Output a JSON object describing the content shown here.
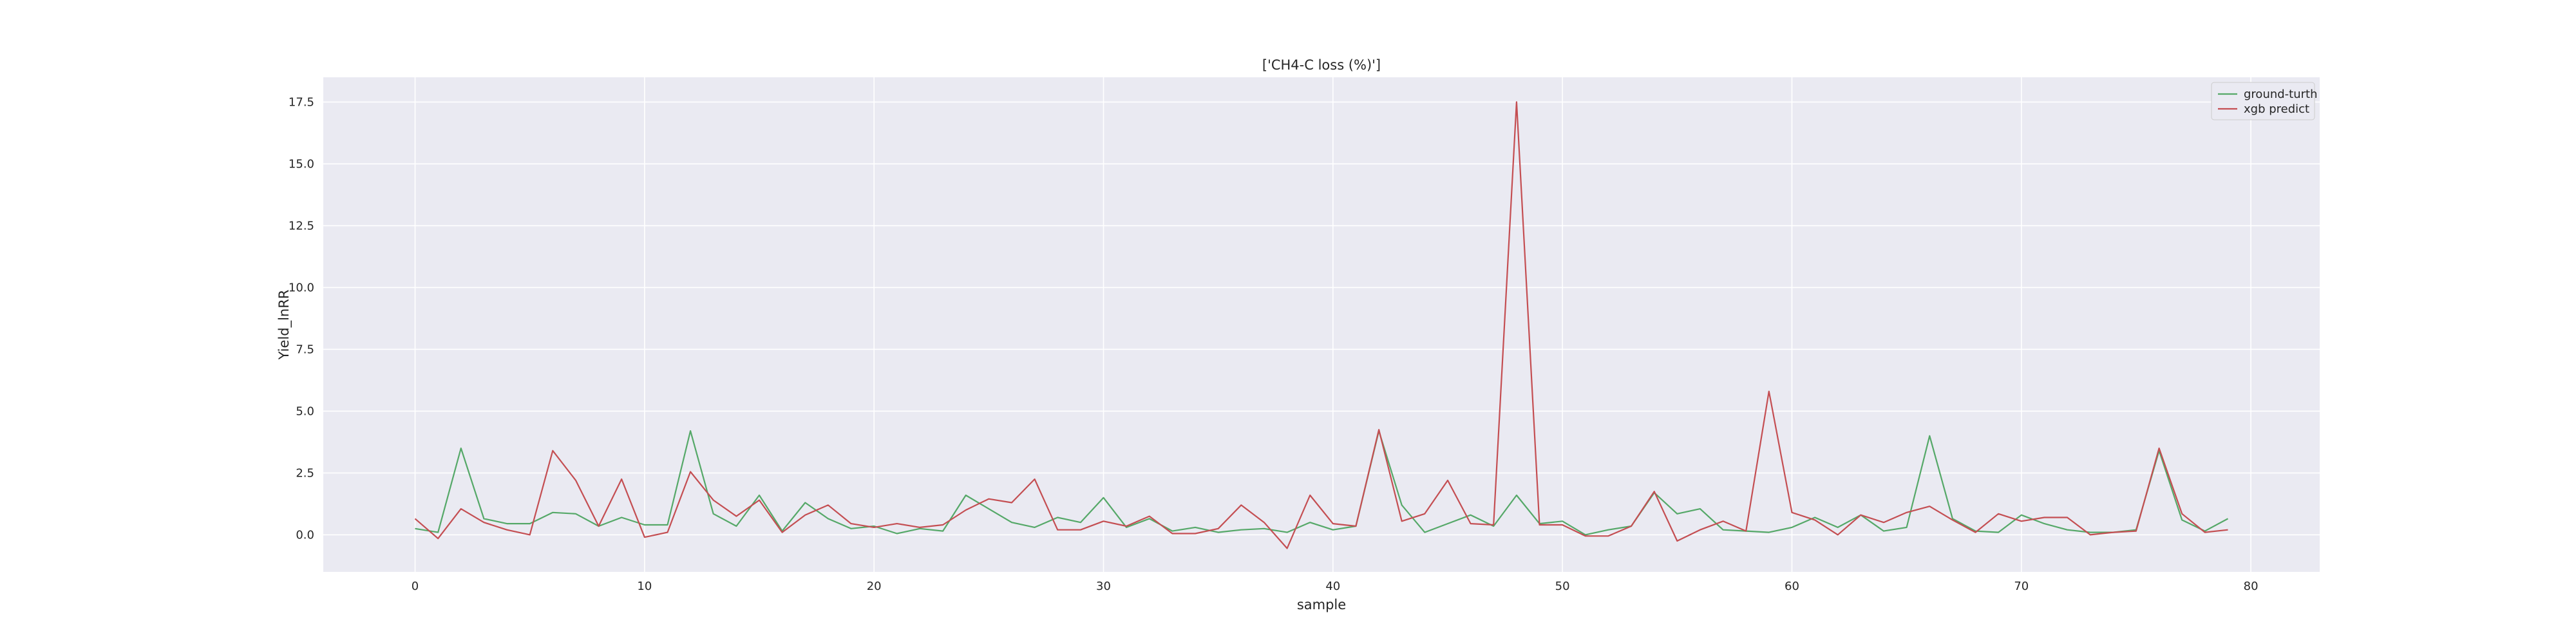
{
  "chart_data": {
    "type": "line",
    "title": "['CH4-C loss (%)']",
    "xlabel": "sample",
    "ylabel": "Yield_lnRR",
    "xlim": [
      -4,
      83
    ],
    "ylim": [
      -1.5,
      18.5
    ],
    "xticks": [
      0,
      10,
      20,
      30,
      40,
      50,
      60,
      70,
      80
    ],
    "xtick_labels": [
      "0",
      "10",
      "20",
      "30",
      "40",
      "50",
      "60",
      "70",
      "80"
    ],
    "yticks": [
      0.0,
      2.5,
      5.0,
      7.5,
      10.0,
      12.5,
      15.0,
      17.5
    ],
    "ytick_labels": [
      "0.0",
      "2.5",
      "5.0",
      "7.5",
      "10.0",
      "12.5",
      "15.0",
      "17.5"
    ],
    "grid": true,
    "background": "#eaeaf2",
    "legend_position": "top-right",
    "x": [
      0,
      1,
      2,
      3,
      4,
      5,
      6,
      7,
      8,
      9,
      10,
      11,
      12,
      13,
      14,
      15,
      16,
      17,
      18,
      19,
      20,
      21,
      22,
      23,
      24,
      25,
      26,
      27,
      28,
      29,
      30,
      31,
      32,
      33,
      34,
      35,
      36,
      37,
      38,
      39,
      40,
      41,
      42,
      43,
      44,
      45,
      46,
      47,
      48,
      49,
      50,
      51,
      52,
      53,
      54,
      55,
      56,
      57,
      58,
      59,
      60,
      61,
      62,
      63,
      64,
      65,
      66,
      67,
      68,
      69,
      70,
      71,
      72,
      73,
      74,
      75,
      76,
      77,
      78,
      79
    ],
    "series": [
      {
        "name": "ground-turth",
        "color": "#55a868",
        "values": [
          0.25,
          0.1,
          3.5,
          0.65,
          0.45,
          0.45,
          0.9,
          0.85,
          0.35,
          0.7,
          0.4,
          0.4,
          4.2,
          0.85,
          0.35,
          1.6,
          0.15,
          1.3,
          0.65,
          0.25,
          0.35,
          0.05,
          0.25,
          0.15,
          1.6,
          1.05,
          0.5,
          0.3,
          0.7,
          0.5,
          1.5,
          0.3,
          0.65,
          0.15,
          0.3,
          0.1,
          0.2,
          0.25,
          0.1,
          0.5,
          0.2,
          0.35,
          4.2,
          1.2,
          0.1,
          0.45,
          0.8,
          0.35,
          1.6,
          0.45,
          0.55,
          0.0,
          0.2,
          0.35,
          1.7,
          0.85,
          1.05,
          0.2,
          0.15,
          0.1,
          0.3,
          0.7,
          0.3,
          0.8,
          0.15,
          0.3,
          4.0,
          0.65,
          0.15,
          0.1,
          0.8,
          0.45,
          0.2,
          0.1,
          0.1,
          0.2,
          3.4,
          0.6,
          0.15,
          0.65
        ]
      },
      {
        "name": "xgb predict",
        "color": "#c44e52",
        "values": [
          0.65,
          -0.15,
          1.05,
          0.5,
          0.2,
          0.0,
          3.4,
          2.2,
          0.35,
          2.25,
          -0.1,
          0.1,
          2.55,
          1.4,
          0.75,
          1.4,
          0.1,
          0.8,
          1.2,
          0.45,
          0.3,
          0.45,
          0.3,
          0.4,
          1.0,
          1.45,
          1.3,
          2.25,
          0.2,
          0.2,
          0.55,
          0.35,
          0.75,
          0.05,
          0.05,
          0.25,
          1.2,
          0.5,
          -0.55,
          1.6,
          0.45,
          0.35,
          4.25,
          0.55,
          0.85,
          2.2,
          0.45,
          0.4,
          17.5,
          0.4,
          0.4,
          -0.05,
          -0.05,
          0.35,
          1.75,
          -0.25,
          0.2,
          0.55,
          0.15,
          5.8,
          0.9,
          0.6,
          0.0,
          0.8,
          0.5,
          0.9,
          1.15,
          0.6,
          0.1,
          0.85,
          0.55,
          0.7,
          0.7,
          0.0,
          0.1,
          0.15,
          3.5,
          0.85,
          0.1,
          0.2
        ]
      }
    ]
  }
}
